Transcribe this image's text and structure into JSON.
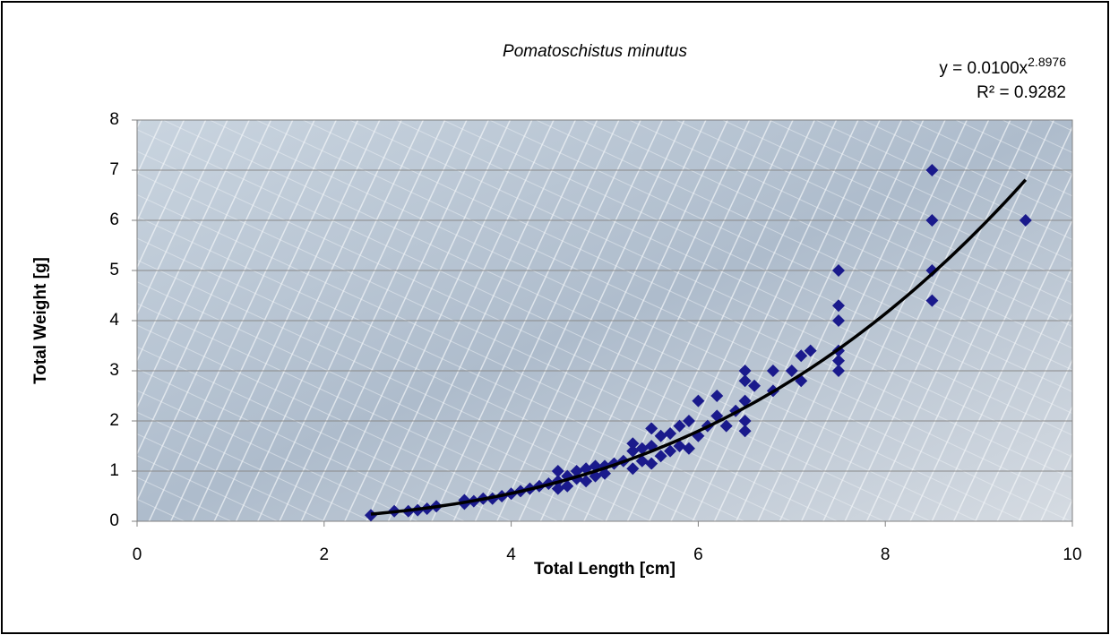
{
  "chart_data": {
    "type": "scatter",
    "title": "Pomatoschistus minutus",
    "x_label": "Total Length [cm]",
    "y_label": "Total Weight [g]",
    "color": "#1a1a8c",
    "trendline": {
      "equation": "y = 0.0100x",
      "exponent": "2.8976",
      "r2": "R² = 0.9282",
      "a": 0.01,
      "b": 2.8976,
      "color": "#000000"
    },
    "xlim": [
      0,
      10
    ],
    "xticks": [
      0,
      2,
      4,
      6,
      8,
      10
    ],
    "ylim": [
      0,
      8
    ],
    "yticks": [
      0,
      1,
      2,
      3,
      4,
      5,
      6,
      7,
      8
    ],
    "grid": true,
    "x": [
      2.5,
      2.75,
      2.9,
      3.0,
      3.1,
      3.2,
      3.5,
      3.5,
      3.6,
      3.7,
      3.8,
      3.9,
      4.0,
      4.1,
      4.2,
      4.3,
      4.4,
      4.5,
      4.5,
      4.5,
      4.6,
      4.6,
      4.7,
      4.7,
      4.8,
      4.8,
      4.9,
      4.9,
      5.0,
      5.0,
      5.1,
      5.2,
      5.3,
      5.3,
      5.3,
      5.4,
      5.4,
      5.5,
      5.5,
      5.5,
      5.6,
      5.6,
      5.7,
      5.7,
      5.8,
      5.8,
      5.9,
      5.9,
      6.0,
      6.0,
      6.1,
      6.2,
      6.2,
      6.3,
      6.4,
      6.5,
      6.5,
      6.5,
      6.5,
      6.5,
      6.6,
      6.8,
      6.8,
      7.0,
      7.1,
      7.1,
      7.2,
      7.5,
      7.5,
      7.5,
      7.5,
      7.5,
      7.5,
      8.5,
      8.5,
      8.5,
      8.5,
      9.5
    ],
    "values": [
      0.12,
      0.2,
      0.2,
      0.22,
      0.25,
      0.3,
      0.35,
      0.42,
      0.4,
      0.45,
      0.45,
      0.5,
      0.55,
      0.6,
      0.65,
      0.7,
      0.75,
      0.8,
      1.0,
      0.65,
      0.7,
      0.9,
      0.85,
      1.0,
      0.8,
      1.05,
      0.9,
      1.1,
      0.95,
      1.1,
      1.15,
      1.2,
      1.05,
      1.4,
      1.55,
      1.2,
      1.45,
      1.15,
      1.5,
      1.85,
      1.3,
      1.7,
      1.4,
      1.75,
      1.5,
      1.9,
      1.45,
      2.0,
      1.7,
      2.4,
      1.9,
      2.1,
      2.5,
      1.9,
      2.2,
      1.8,
      2.0,
      2.4,
      2.8,
      3.0,
      2.7,
      2.6,
      3.0,
      3.0,
      2.8,
      3.3,
      3.4,
      3.0,
      3.2,
      3.4,
      4.0,
      4.3,
      5.0,
      4.4,
      5.0,
      6.0,
      7.0,
      6.0
    ]
  }
}
